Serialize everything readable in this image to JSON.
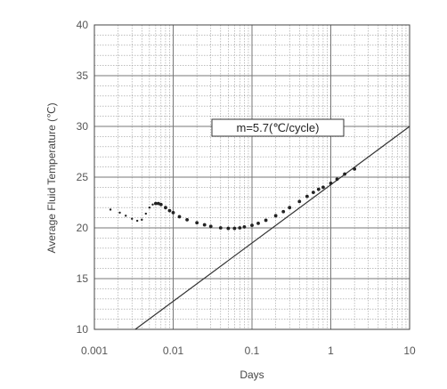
{
  "chart_data": {
    "type": "scatter",
    "title": "",
    "xlabel": "Days",
    "ylabel": "Average Fluid Temperature (℃)",
    "x_scale": "log",
    "xlim": [
      0.001,
      10
    ],
    "ylim": [
      10,
      40
    ],
    "x_ticks": [
      "0.001",
      "0.01",
      "0.1",
      "1",
      "10"
    ],
    "y_ticks": [
      "10",
      "15",
      "20",
      "25",
      "30",
      "35",
      "40"
    ],
    "grid": true,
    "annotation": "m=5.7(℃/cycle)",
    "series": [
      {
        "kind": "points",
        "x": [
          0.0016,
          0.0021,
          0.0025,
          0.003,
          0.0035,
          0.004,
          0.0045,
          0.005,
          0.0055,
          0.006,
          0.0065,
          0.007,
          0.008,
          0.009,
          0.01,
          0.012,
          0.015,
          0.02,
          0.025,
          0.03,
          0.04,
          0.05,
          0.06,
          0.07,
          0.08,
          0.1,
          0.12,
          0.15,
          0.2,
          0.25,
          0.3,
          0.4,
          0.5,
          0.6,
          0.7,
          0.8,
          1.0,
          1.2,
          1.5,
          2.0
        ],
        "y": [
          21.8,
          21.5,
          21.2,
          20.9,
          20.7,
          20.8,
          21.4,
          22.0,
          22.3,
          22.4,
          22.4,
          22.3,
          22.0,
          21.7,
          21.5,
          21.1,
          20.8,
          20.5,
          20.3,
          20.15,
          20.0,
          19.95,
          19.95,
          20.0,
          20.1,
          20.25,
          20.45,
          20.75,
          21.2,
          21.6,
          22.0,
          22.6,
          23.1,
          23.5,
          23.8,
          24.0,
          24.4,
          24.8,
          25.3,
          25.8
        ]
      },
      {
        "kind": "line",
        "x": [
          0.0033,
          10
        ],
        "y": [
          10,
          30
        ]
      }
    ]
  }
}
